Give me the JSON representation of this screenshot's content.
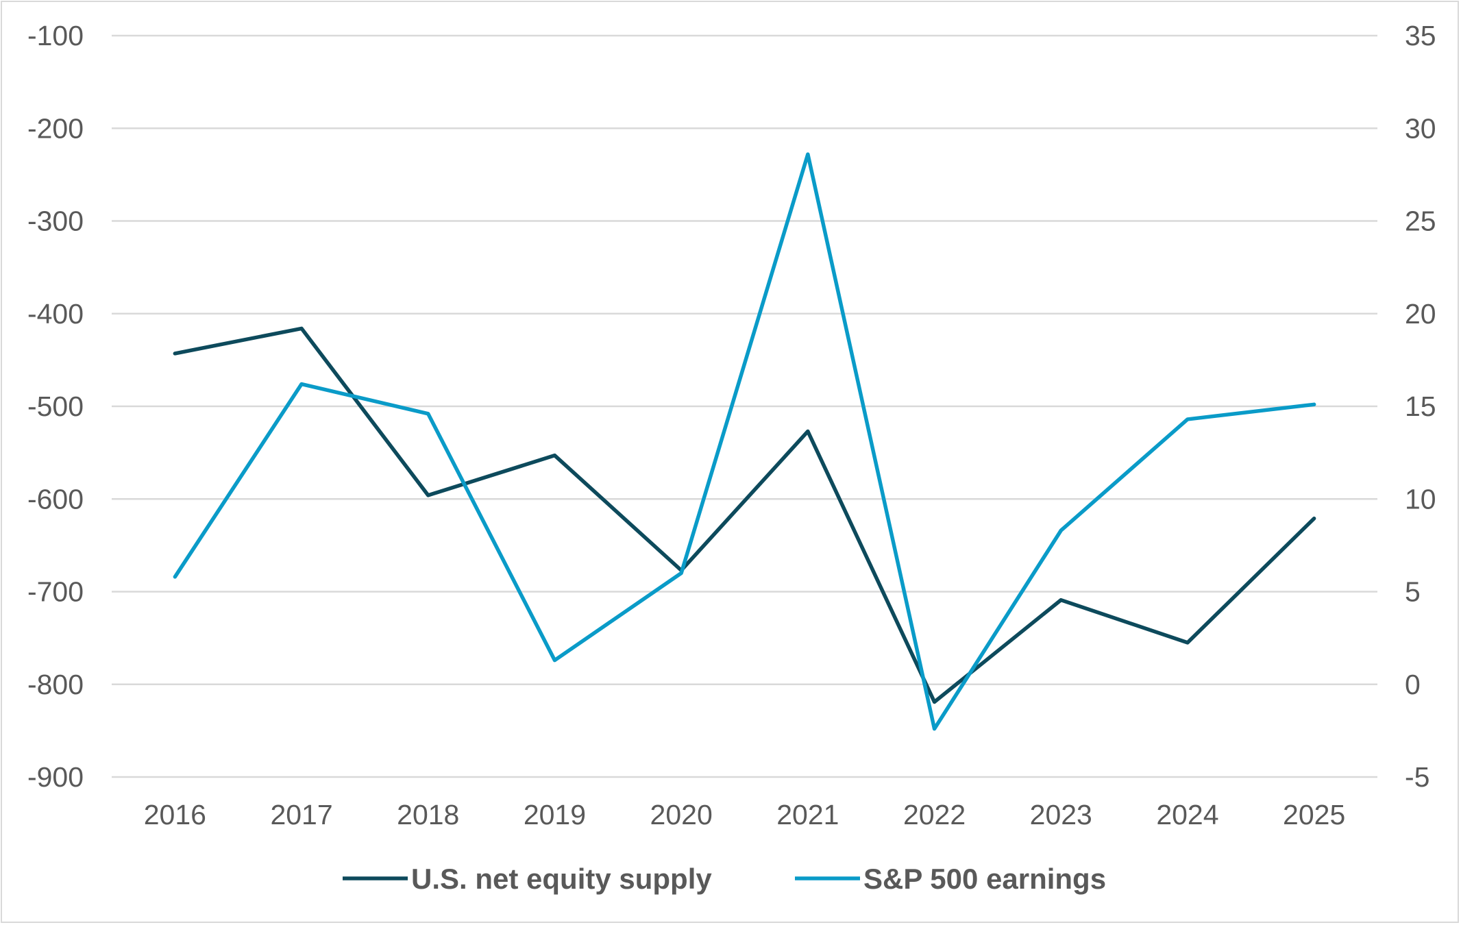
{
  "chart_data": {
    "type": "line",
    "title": "",
    "categories": [
      "2016",
      "2017",
      "2018",
      "2019",
      "2020",
      "2021",
      "2022",
      "2023",
      "2024",
      "2025"
    ],
    "y_left": {
      "ylim": [
        -900,
        -100
      ],
      "ticks": [
        "-100",
        "-200",
        "-300",
        "-400",
        "-500",
        "-600",
        "-700",
        "-800",
        "-900"
      ]
    },
    "y_right": {
      "ylim": [
        -5,
        35
      ],
      "ticks": [
        "35",
        "30",
        "25",
        "20",
        "15",
        "10",
        "5",
        "0",
        "-5"
      ]
    },
    "grid": true,
    "legend_position": "bottom",
    "series": [
      {
        "name": "U.S. net equity supply",
        "axis": "left",
        "color": "#0d4a5c",
        "values": [
          -443,
          -416,
          -596,
          -553,
          -677,
          -527,
          -819,
          -709,
          -755,
          -621
        ]
      },
      {
        "name": "S&P 500 earnings",
        "axis": "right",
        "color": "#0a9bc8",
        "values": [
          5.8,
          16.2,
          14.6,
          1.3,
          6.0,
          28.6,
          -2.4,
          8.3,
          14.3,
          15.1
        ]
      }
    ]
  }
}
